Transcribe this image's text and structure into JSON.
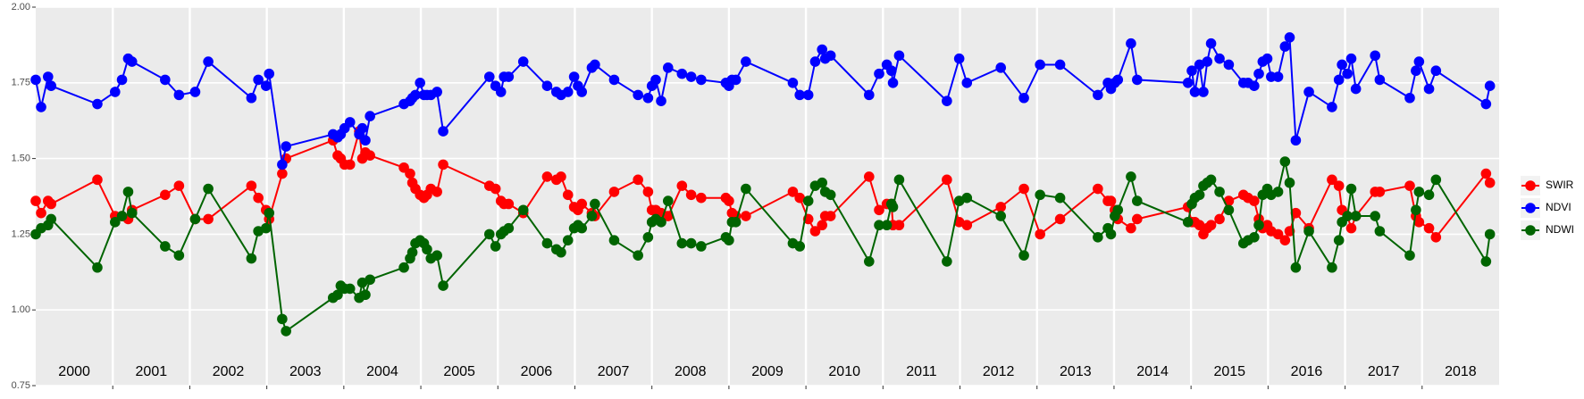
{
  "chart_data": {
    "type": "line",
    "x": [
      2000.0,
      2000.07,
      2000.16,
      2000.2,
      2000.8,
      2001.03,
      2001.12,
      2001.2,
      2001.25,
      2001.68,
      2001.86,
      2002.07,
      2002.24,
      2002.8,
      2002.89,
      2002.99,
      2003.03,
      2003.2,
      2003.25,
      2003.86,
      2003.92,
      2003.96,
      2004.01,
      2004.08,
      2004.2,
      2004.24,
      2004.28,
      2004.34,
      2004.78,
      2004.86,
      2004.89,
      2004.93,
      2004.99,
      2005.04,
      2005.08,
      2005.13,
      2005.21,
      2005.29,
      2005.89,
      2005.97,
      2006.04,
      2006.08,
      2006.14,
      2006.33,
      2006.64,
      2006.76,
      2006.82,
      2006.91,
      2006.99,
      2007.04,
      2007.09,
      2007.22,
      2007.26,
      2007.51,
      2007.82,
      2007.95,
      2008.0,
      2008.05,
      2008.12,
      2008.21,
      2008.39,
      2008.51,
      2008.64,
      2008.96,
      2009.0,
      2009.04,
      2009.09,
      2009.22,
      2009.83,
      2009.92,
      2010.03,
      2010.12,
      2010.21,
      2010.25,
      2010.32,
      2010.82,
      2010.95,
      2011.05,
      2011.11,
      2011.13,
      2011.21,
      2011.83,
      2011.99,
      2012.09,
      2012.53,
      2012.83,
      2013.04,
      2013.3,
      2013.79,
      2013.92,
      2013.96,
      2014.01,
      2014.05,
      2014.22,
      2014.3,
      2014.96,
      2015.01,
      2015.05,
      2015.11,
      2015.16,
      2015.21,
      2015.26,
      2015.37,
      2015.49,
      2015.68,
      2015.74,
      2015.82,
      2015.88,
      2015.93,
      2015.99,
      2016.04,
      2016.13,
      2016.22,
      2016.28,
      2016.36,
      2016.53,
      2016.83,
      2016.92,
      2016.96,
      2017.03,
      2017.08,
      2017.14,
      2017.39,
      2017.45,
      2017.84,
      2017.92,
      2017.96,
      2018.09,
      2018.18,
      2018.83,
      2018.88
    ],
    "series": [
      {
        "name": "SWIR",
        "color": "#ff0000",
        "values": [
          1.36,
          1.32,
          1.36,
          1.35,
          1.43,
          1.31,
          1.31,
          1.3,
          1.33,
          1.38,
          1.41,
          1.3,
          1.3,
          1.41,
          1.37,
          1.33,
          1.3,
          1.45,
          1.5,
          1.56,
          1.51,
          1.5,
          1.48,
          1.48,
          1.59,
          1.5,
          1.52,
          1.51,
          1.47,
          1.45,
          1.42,
          1.4,
          1.38,
          1.37,
          1.38,
          1.4,
          1.39,
          1.48,
          1.41,
          1.4,
          1.36,
          1.35,
          1.35,
          1.32,
          1.44,
          1.43,
          1.44,
          1.38,
          1.34,
          1.33,
          1.35,
          1.32,
          1.31,
          1.39,
          1.43,
          1.39,
          1.33,
          1.33,
          1.32,
          1.31,
          1.41,
          1.38,
          1.37,
          1.37,
          1.36,
          1.32,
          1.31,
          1.31,
          1.39,
          1.37,
          1.3,
          1.26,
          1.28,
          1.31,
          1.31,
          1.44,
          1.33,
          1.35,
          1.35,
          1.28,
          1.28,
          1.43,
          1.29,
          1.28,
          1.34,
          1.4,
          1.25,
          1.3,
          1.4,
          1.36,
          1.36,
          1.33,
          1.3,
          1.27,
          1.3,
          1.34,
          1.29,
          1.29,
          1.28,
          1.25,
          1.27,
          1.28,
          1.3,
          1.36,
          1.38,
          1.37,
          1.36,
          1.3,
          1.27,
          1.28,
          1.26,
          1.25,
          1.23,
          1.26,
          1.32,
          1.27,
          1.43,
          1.41,
          1.33,
          1.31,
          1.27,
          1.31,
          1.39,
          1.39,
          1.41,
          1.31,
          1.29,
          1.27,
          1.24,
          1.45,
          1.42
        ]
      },
      {
        "name": "NDVI",
        "color": "#0000ff",
        "values": [
          1.76,
          1.67,
          1.77,
          1.74,
          1.68,
          1.72,
          1.76,
          1.83,
          1.82,
          1.76,
          1.71,
          1.72,
          1.82,
          1.7,
          1.76,
          1.74,
          1.78,
          1.48,
          1.54,
          1.58,
          1.57,
          1.58,
          1.6,
          1.62,
          1.58,
          1.6,
          1.56,
          1.64,
          1.68,
          1.69,
          1.7,
          1.71,
          1.75,
          1.71,
          1.71,
          1.71,
          1.72,
          1.59,
          1.77,
          1.74,
          1.72,
          1.77,
          1.77,
          1.82,
          1.74,
          1.72,
          1.71,
          1.72,
          1.77,
          1.74,
          1.72,
          1.8,
          1.81,
          1.76,
          1.71,
          1.7,
          1.74,
          1.76,
          1.69,
          1.8,
          1.78,
          1.77,
          1.76,
          1.75,
          1.74,
          1.76,
          1.76,
          1.82,
          1.75,
          1.71,
          1.71,
          1.82,
          1.86,
          1.83,
          1.84,
          1.71,
          1.78,
          1.81,
          1.79,
          1.75,
          1.84,
          1.69,
          1.83,
          1.75,
          1.8,
          1.7,
          1.81,
          1.81,
          1.71,
          1.75,
          1.73,
          1.75,
          1.76,
          1.88,
          1.76,
          1.75,
          1.79,
          1.72,
          1.81,
          1.72,
          1.82,
          1.88,
          1.83,
          1.81,
          1.75,
          1.75,
          1.74,
          1.78,
          1.82,
          1.83,
          1.77,
          1.77,
          1.87,
          1.9,
          1.56,
          1.72,
          1.67,
          1.76,
          1.81,
          1.78,
          1.83,
          1.73,
          1.84,
          1.76,
          1.7,
          1.79,
          1.82,
          1.73,
          1.79,
          1.68,
          1.74
        ]
      },
      {
        "name": "NDWI",
        "color": "#006400",
        "values": [
          1.25,
          1.27,
          1.28,
          1.3,
          1.14,
          1.29,
          1.31,
          1.39,
          1.32,
          1.21,
          1.18,
          1.3,
          1.4,
          1.17,
          1.26,
          1.27,
          1.32,
          0.97,
          0.93,
          1.04,
          1.05,
          1.08,
          1.07,
          1.07,
          1.04,
          1.09,
          1.05,
          1.1,
          1.14,
          1.17,
          1.19,
          1.22,
          1.23,
          1.22,
          1.2,
          1.17,
          1.18,
          1.08,
          1.25,
          1.21,
          1.25,
          1.26,
          1.27,
          1.33,
          1.22,
          1.2,
          1.19,
          1.23,
          1.27,
          1.28,
          1.27,
          1.31,
          1.35,
          1.23,
          1.18,
          1.24,
          1.29,
          1.3,
          1.29,
          1.36,
          1.22,
          1.22,
          1.21,
          1.24,
          1.23,
          1.29,
          1.29,
          1.4,
          1.22,
          1.21,
          1.36,
          1.41,
          1.42,
          1.39,
          1.38,
          1.16,
          1.28,
          1.28,
          1.35,
          1.34,
          1.43,
          1.16,
          1.36,
          1.37,
          1.31,
          1.18,
          1.38,
          1.37,
          1.24,
          1.27,
          1.25,
          1.31,
          1.33,
          1.44,
          1.36,
          1.29,
          1.35,
          1.37,
          1.38,
          1.41,
          1.42,
          1.43,
          1.39,
          1.33,
          1.22,
          1.23,
          1.24,
          1.28,
          1.38,
          1.4,
          1.38,
          1.39,
          1.49,
          1.42,
          1.14,
          1.26,
          1.14,
          1.23,
          1.29,
          1.31,
          1.4,
          1.31,
          1.31,
          1.26,
          1.18,
          1.33,
          1.39,
          1.38,
          1.43,
          1.16,
          1.25
        ]
      }
    ],
    "xlim": [
      2000,
      2019
    ],
    "xticks": [
      2001,
      2002,
      2003,
      2004,
      2005,
      2006,
      2007,
      2008,
      2009,
      2010,
      2011,
      2012,
      2013,
      2014,
      2015,
      2016,
      2017,
      2018
    ],
    "year_labels": [
      2000,
      2001,
      2002,
      2003,
      2004,
      2005,
      2006,
      2007,
      2008,
      2009,
      2010,
      2011,
      2012,
      2013,
      2014,
      2015,
      2016,
      2017,
      2018
    ],
    "ylim": [
      0.75,
      2.0
    ],
    "yticks": [
      0.75,
      {
        "value": 1.0,
        "label": "1.00"
      },
      1.25,
      {
        "value": 1.5,
        "label": "1.50"
      },
      1.75,
      {
        "value": 2.0,
        "label": "2.00"
      }
    ],
    "grid": true,
    "legend": "right"
  }
}
